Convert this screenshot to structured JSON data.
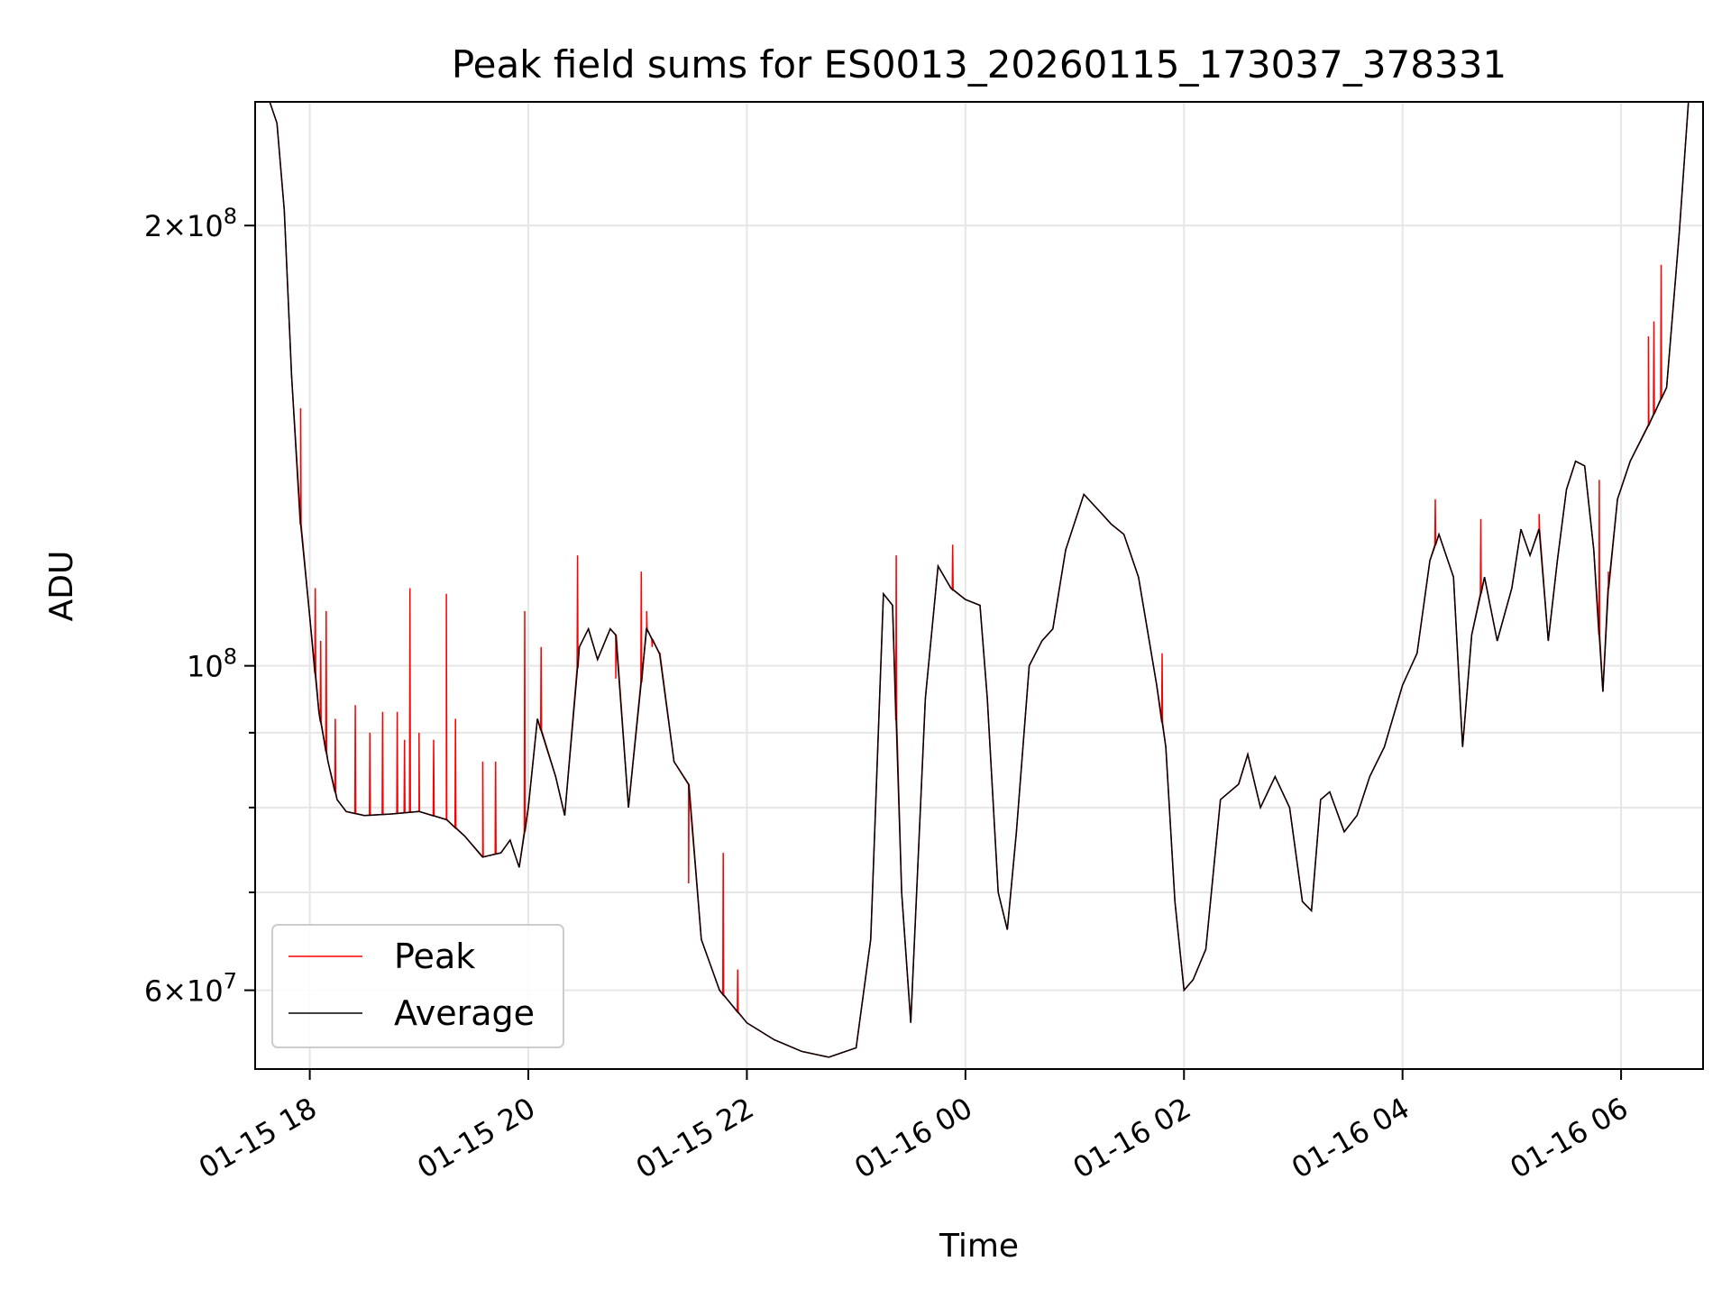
{
  "chart_data": {
    "type": "line",
    "title": "Peak field sums for ES0013_20260115_173037_378331",
    "xlabel": "Time",
    "ylabel": "ADU",
    "x_axis": {
      "type": "time",
      "range": [
        "2026-01-15 17:30",
        "2026-01-16 06:45"
      ],
      "ticks": [
        {
          "value": "2026-01-15 18:00",
          "label": "01-15 18"
        },
        {
          "value": "2026-01-15 20:00",
          "label": "01-15 20"
        },
        {
          "value": "2026-01-15 22:00",
          "label": "01-15 22"
        },
        {
          "value": "2026-01-16 00:00",
          "label": "01-16 00"
        },
        {
          "value": "2026-01-16 02:00",
          "label": "01-16 02"
        },
        {
          "value": "2026-01-16 04:00",
          "label": "01-16 04"
        },
        {
          "value": "2026-01-16 06:00",
          "label": "01-16 06"
        }
      ]
    },
    "y_axis": {
      "scale": "log",
      "range": [
        53000000,
        243000000
      ],
      "labeled_ticks": [
        {
          "value": 60000000,
          "mantissa": "6",
          "exp": "7"
        },
        {
          "value": 100000000,
          "mantissa": "",
          "exp": "8"
        },
        {
          "value": 200000000,
          "mantissa": "2",
          "exp": "8"
        }
      ],
      "minor_ticks": [
        70000000,
        80000000,
        90000000
      ]
    },
    "grid": true,
    "legend": {
      "position": "lower-left",
      "entries": [
        "Peak",
        "Average"
      ]
    },
    "series": [
      {
        "name": "Average",
        "color": "#000000",
        "x": [
          "2026-01-15 17:30",
          "2026-01-15 17:38",
          "2026-01-15 17:42",
          "2026-01-15 17:46",
          "2026-01-15 17:50",
          "2026-01-15 17:55",
          "2026-01-15 18:00",
          "2026-01-15 18:05",
          "2026-01-15 18:10",
          "2026-01-15 18:15",
          "2026-01-15 18:20",
          "2026-01-15 18:30",
          "2026-01-15 18:45",
          "2026-01-15 19:00",
          "2026-01-15 19:15",
          "2026-01-15 19:25",
          "2026-01-15 19:35",
          "2026-01-15 19:45",
          "2026-01-15 19:50",
          "2026-01-15 19:55",
          "2026-01-15 20:00",
          "2026-01-15 20:05",
          "2026-01-15 20:15",
          "2026-01-15 20:20",
          "2026-01-15 20:28",
          "2026-01-15 20:33",
          "2026-01-15 20:38",
          "2026-01-15 20:45",
          "2026-01-15 20:48",
          "2026-01-15 20:55",
          "2026-01-15 21:05",
          "2026-01-15 21:12",
          "2026-01-15 21:20",
          "2026-01-15 21:28",
          "2026-01-15 21:35",
          "2026-01-15 21:45",
          "2026-01-15 22:00",
          "2026-01-15 22:15",
          "2026-01-15 22:30",
          "2026-01-15 22:45",
          "2026-01-15 23:00",
          "2026-01-15 23:08",
          "2026-01-15 23:15",
          "2026-01-15 23:20",
          "2026-01-15 23:25",
          "2026-01-15 23:30",
          "2026-01-15 23:38",
          "2026-01-15 23:45",
          "2026-01-15 23:52",
          "2026-01-16 00:00",
          "2026-01-16 00:08",
          "2026-01-16 00:12",
          "2026-01-16 00:18",
          "2026-01-16 00:23",
          "2026-01-16 00:28",
          "2026-01-16 00:35",
          "2026-01-16 00:42",
          "2026-01-16 00:48",
          "2026-01-16 00:55",
          "2026-01-16 01:05",
          "2026-01-16 01:15",
          "2026-01-16 01:20",
          "2026-01-16 01:27",
          "2026-01-16 01:35",
          "2026-01-16 01:45",
          "2026-01-16 01:50",
          "2026-01-16 01:55",
          "2026-01-16 02:00",
          "2026-01-16 02:05",
          "2026-01-16 02:12",
          "2026-01-16 02:20",
          "2026-01-16 02:30",
          "2026-01-16 02:35",
          "2026-01-16 02:42",
          "2026-01-16 02:50",
          "2026-01-16 02:58",
          "2026-01-16 03:05",
          "2026-01-16 03:10",
          "2026-01-16 03:15",
          "2026-01-16 03:20",
          "2026-01-16 03:28",
          "2026-01-16 03:35",
          "2026-01-16 03:42",
          "2026-01-16 03:50",
          "2026-01-16 04:00",
          "2026-01-16 04:08",
          "2026-01-16 04:15",
          "2026-01-16 04:20",
          "2026-01-16 04:28",
          "2026-01-16 04:33",
          "2026-01-16 04:38",
          "2026-01-16 04:45",
          "2026-01-16 04:52",
          "2026-01-16 05:00",
          "2026-01-16 05:05",
          "2026-01-16 05:10",
          "2026-01-16 05:15",
          "2026-01-16 05:20",
          "2026-01-16 05:25",
          "2026-01-16 05:30",
          "2026-01-16 05:35",
          "2026-01-16 05:40",
          "2026-01-16 05:45",
          "2026-01-16 05:50",
          "2026-01-16 05:53",
          "2026-01-16 05:58",
          "2026-01-16 06:05",
          "2026-01-16 06:15",
          "2026-01-16 06:25",
          "2026-01-16 06:32",
          "2026-01-16 06:37",
          "2026-01-16 06:45"
        ],
        "y": [
          243000000,
          243000000,
          235000000,
          205000000,
          158000000,
          125000000,
          108000000,
          93000000,
          86000000,
          81000000,
          79500000,
          79000000,
          79200000,
          79500000,
          78500000,
          76500000,
          74000000,
          74500000,
          76000000,
          72800000,
          80000000,
          92000000,
          84000000,
          79000000,
          103000000,
          106000000,
          101000000,
          106000000,
          105000000,
          80000000,
          106000000,
          102000000,
          86000000,
          83000000,
          65000000,
          60000000,
          57000000,
          55500000,
          54500000,
          54000000,
          54800000,
          65000000,
          112000000,
          110000000,
          70000000,
          57000000,
          95000000,
          117000000,
          113000000,
          111000000,
          110000000,
          95000000,
          70000000,
          66000000,
          77000000,
          100000000,
          104000000,
          106000000,
          120000000,
          131000000,
          127000000,
          125000000,
          123000000,
          115000000,
          97000000,
          88000000,
          69000000,
          60000000,
          61000000,
          64000000,
          81000000,
          83000000,
          87000000,
          80000000,
          84000000,
          80000000,
          69000000,
          68000000,
          81000000,
          82000000,
          77000000,
          79000000,
          84000000,
          88000000,
          97000000,
          102000000,
          118000000,
          123000000,
          115000000,
          88000000,
          105000000,
          115000000,
          104000000,
          113000000,
          124000000,
          119000000,
          124000000,
          104000000,
          118000000,
          132000000,
          138000000,
          137000000,
          120000000,
          96000000,
          113000000,
          130000000,
          138000000,
          146000000,
          155000000,
          198000000,
          243000000,
          243000000
        ]
      },
      {
        "name": "Peak",
        "color": "#ff0000",
        "spikes": [
          {
            "x": "2026-01-15 17:55",
            "y": 150000000
          },
          {
            "x": "2026-01-15 18:03",
            "y": 113000000
          },
          {
            "x": "2026-01-15 18:06",
            "y": 104000000
          },
          {
            "x": "2026-01-15 18:09",
            "y": 109000000
          },
          {
            "x": "2026-01-15 18:14",
            "y": 92000000
          },
          {
            "x": "2026-01-15 18:25",
            "y": 94000000
          },
          {
            "x": "2026-01-15 18:33",
            "y": 90000000
          },
          {
            "x": "2026-01-15 18:40",
            "y": 93000000
          },
          {
            "x": "2026-01-15 18:48",
            "y": 93000000
          },
          {
            "x": "2026-01-15 18:52",
            "y": 89000000
          },
          {
            "x": "2026-01-15 18:55",
            "y": 113000000
          },
          {
            "x": "2026-01-15 19:00",
            "y": 90000000
          },
          {
            "x": "2026-01-15 19:08",
            "y": 89000000
          },
          {
            "x": "2026-01-15 19:15",
            "y": 112000000
          },
          {
            "x": "2026-01-15 19:20",
            "y": 92000000
          },
          {
            "x": "2026-01-15 19:35",
            "y": 86000000
          },
          {
            "x": "2026-01-15 19:42",
            "y": 86000000
          },
          {
            "x": "2026-01-15 19:58",
            "y": 109000000
          },
          {
            "x": "2026-01-15 20:07",
            "y": 103000000
          },
          {
            "x": "2026-01-15 20:27",
            "y": 119000000
          },
          {
            "x": "2026-01-15 20:48",
            "y": 98000000
          },
          {
            "x": "2026-01-15 21:02",
            "y": 116000000
          },
          {
            "x": "2026-01-15 21:05",
            "y": 109000000
          },
          {
            "x": "2026-01-15 21:08",
            "y": 103000000
          },
          {
            "x": "2026-01-15 21:12",
            "y": 102000000
          },
          {
            "x": "2026-01-15 21:28",
            "y": 71000000
          },
          {
            "x": "2026-01-15 21:47",
            "y": 74500000
          },
          {
            "x": "2026-01-15 21:55",
            "y": 62000000
          },
          {
            "x": "2026-01-15 23:22",
            "y": 119000000
          },
          {
            "x": "2026-01-15 23:53",
            "y": 121000000
          },
          {
            "x": "2026-01-16 01:48",
            "y": 102000000
          },
          {
            "x": "2026-01-16 04:18",
            "y": 130000000
          },
          {
            "x": "2026-01-16 04:43",
            "y": 126000000
          },
          {
            "x": "2026-01-16 05:15",
            "y": 127000000
          },
          {
            "x": "2026-01-16 05:48",
            "y": 134000000
          },
          {
            "x": "2026-01-16 05:53",
            "y": 116000000
          },
          {
            "x": "2026-01-16 06:15",
            "y": 168000000
          },
          {
            "x": "2026-01-16 06:18",
            "y": 172000000
          },
          {
            "x": "2026-01-16 06:22",
            "y": 188000000
          }
        ]
      }
    ]
  }
}
